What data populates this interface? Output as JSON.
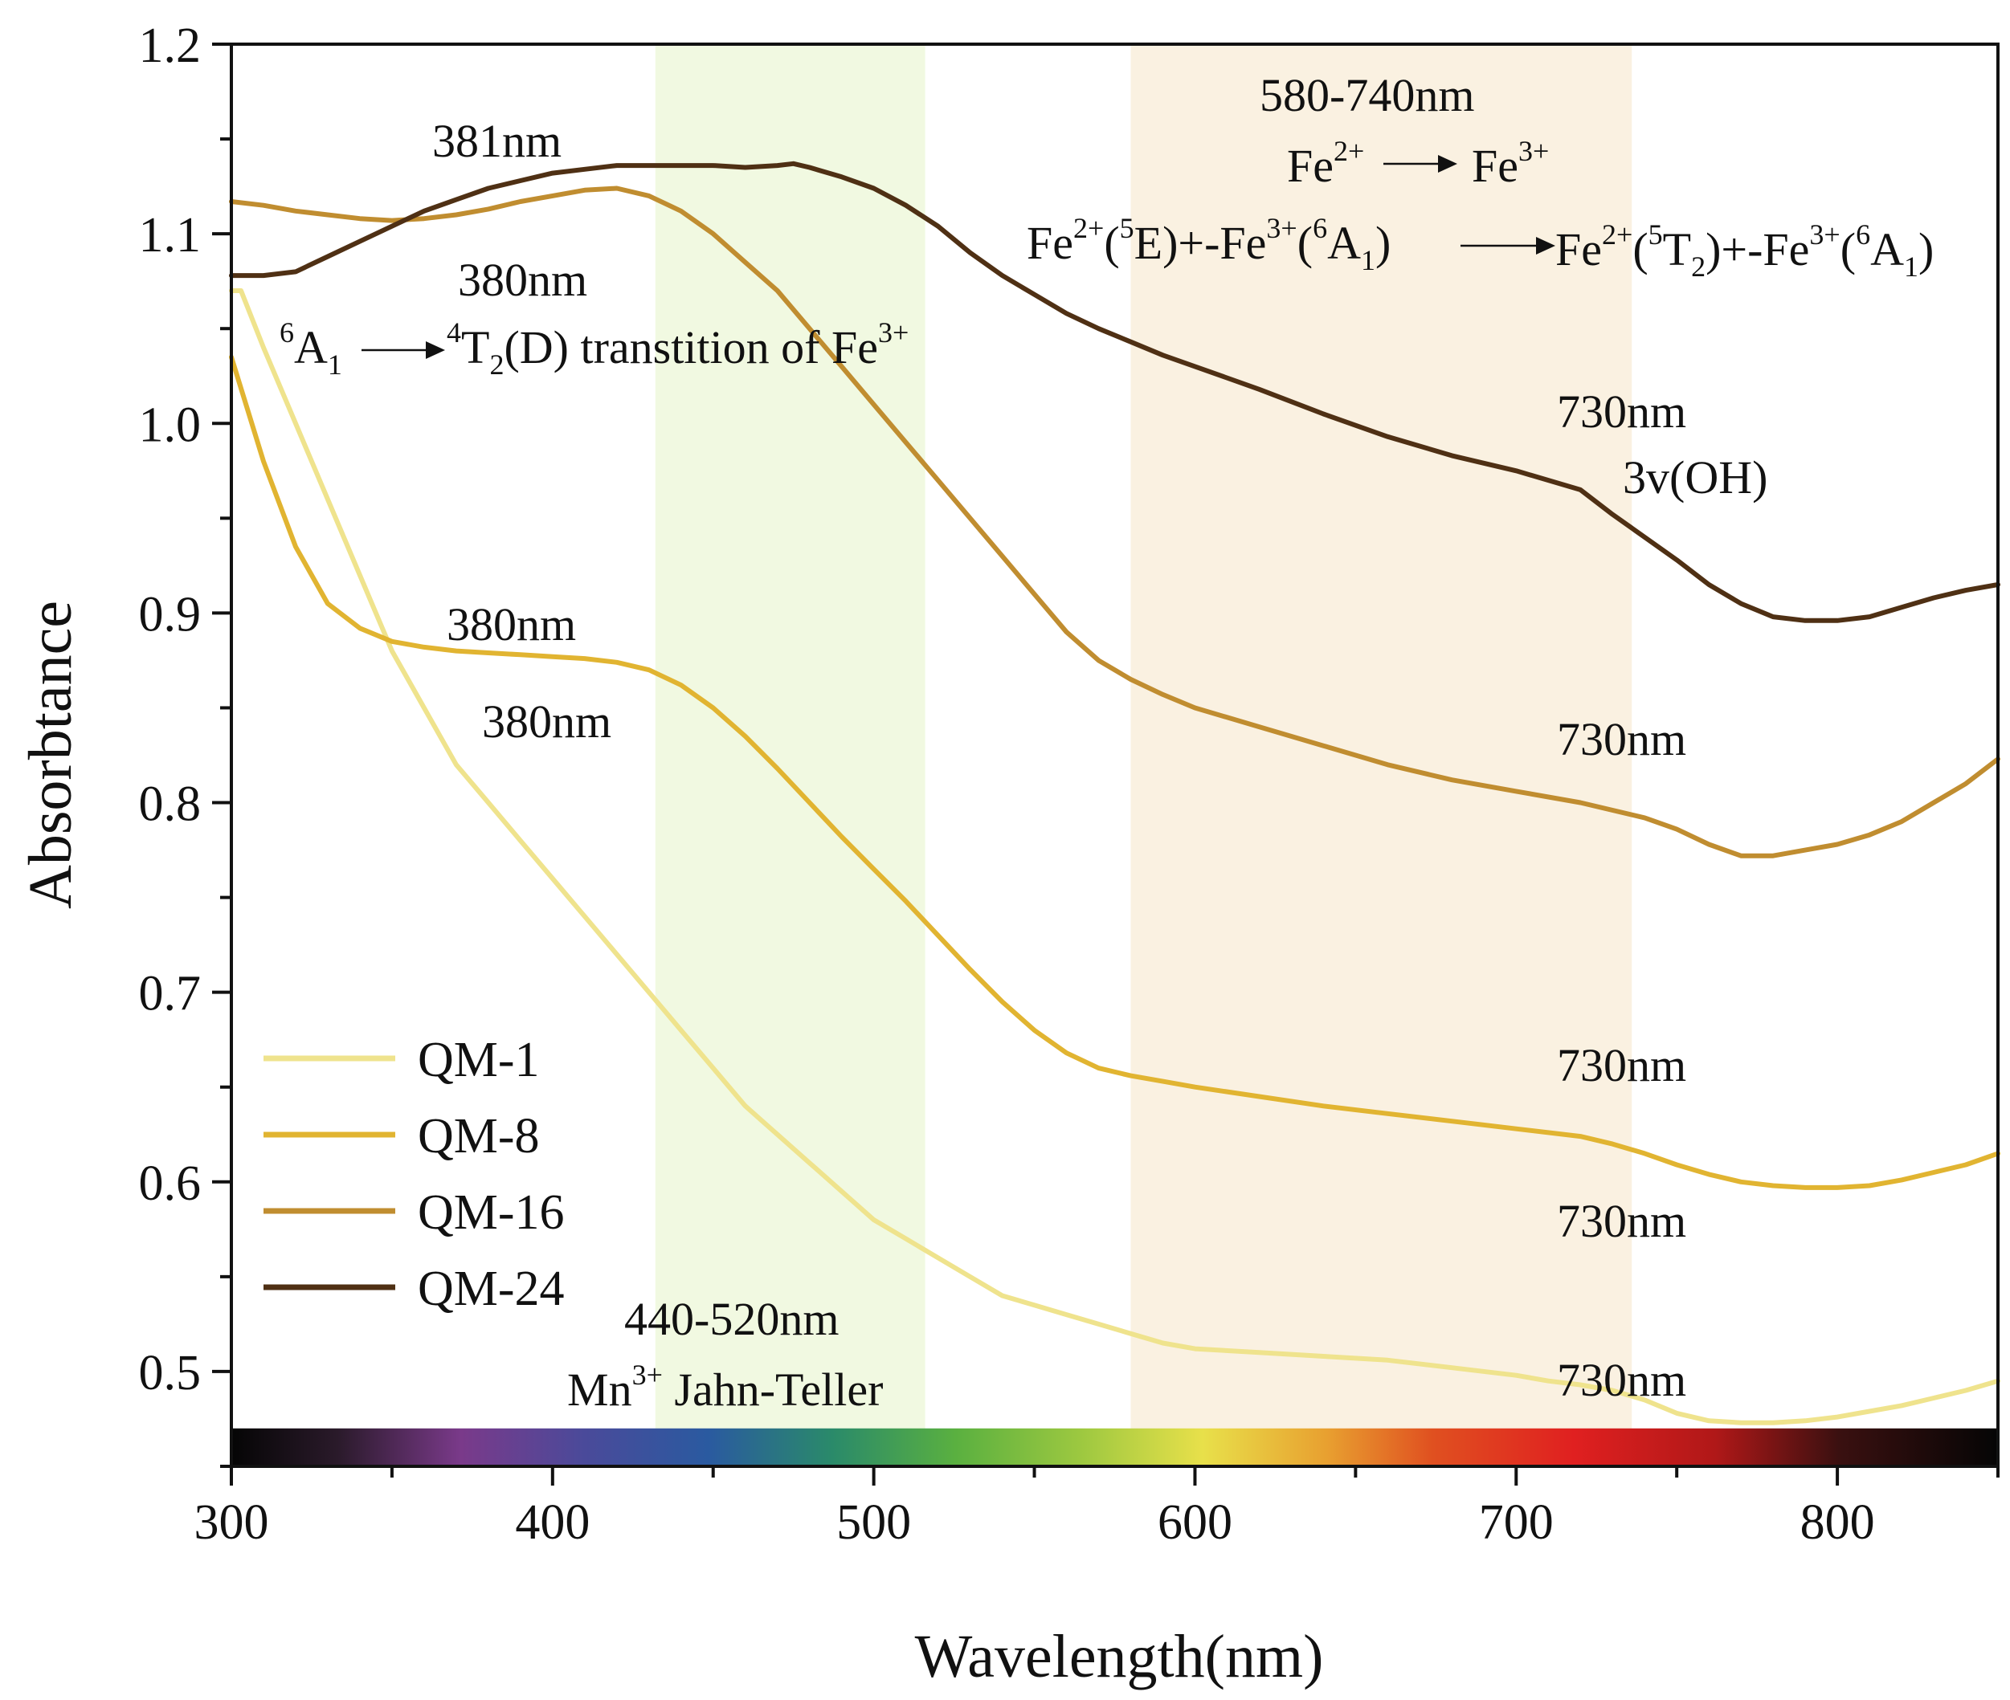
{
  "chart_data": {
    "type": "line",
    "xlabel": "Wavelength(nm)",
    "ylabel": "Absorbtance",
    "xlim": [
      300,
      850
    ],
    "ylim": [
      0.45,
      1.2
    ],
    "x_ticks": [
      "300",
      "400",
      "500",
      "600",
      "700",
      "800"
    ],
    "y_ticks": [
      "0.5",
      "0.6",
      "0.7",
      "0.8",
      "0.9",
      "1.0",
      "1.1",
      "1.2"
    ],
    "legend_position": "bottom-left",
    "grid": false,
    "bands": [
      {
        "from": 432,
        "to": 516,
        "color": "#f1f9e1"
      },
      {
        "from": 580,
        "to": 736,
        "color": "#faf1e1"
      }
    ],
    "spectrum_bar": {
      "y_from": 0.45,
      "y_to": 0.47
    },
    "series": [
      {
        "name": "QM-1",
        "color": "#efe38d",
        "x": [
          300,
          303,
          310,
          320,
          330,
          340,
          350,
          360,
          370,
          380,
          390,
          400,
          410,
          420,
          430,
          440,
          450,
          460,
          470,
          480,
          490,
          500,
          510,
          520,
          530,
          540,
          550,
          560,
          570,
          580,
          590,
          600,
          620,
          640,
          660,
          680,
          700,
          710,
          720,
          730,
          740,
          750,
          760,
          770,
          780,
          790,
          800,
          810,
          820,
          830,
          840,
          850
        ],
        "y": [
          1.07,
          1.07,
          1.04,
          1.0,
          0.96,
          0.92,
          0.88,
          0.85,
          0.82,
          0.8,
          0.78,
          0.76,
          0.74,
          0.72,
          0.7,
          0.68,
          0.66,
          0.64,
          0.625,
          0.61,
          0.595,
          0.58,
          0.57,
          0.56,
          0.55,
          0.54,
          0.535,
          0.53,
          0.525,
          0.52,
          0.515,
          0.512,
          0.51,
          0.508,
          0.506,
          0.502,
          0.498,
          0.495,
          0.493,
          0.49,
          0.485,
          0.478,
          0.474,
          0.473,
          0.473,
          0.474,
          0.476,
          0.479,
          0.482,
          0.486,
          0.49,
          0.495
        ]
      },
      {
        "name": "QM-8",
        "color": "#e1b431",
        "x": [
          300,
          310,
          320,
          330,
          340,
          350,
          360,
          370,
          380,
          390,
          400,
          410,
          420,
          430,
          440,
          450,
          460,
          470,
          480,
          490,
          500,
          510,
          520,
          530,
          540,
          550,
          560,
          570,
          580,
          590,
          600,
          620,
          640,
          660,
          680,
          700,
          720,
          730,
          740,
          750,
          760,
          770,
          780,
          790,
          800,
          810,
          820,
          830,
          840,
          850
        ],
        "y": [
          1.035,
          0.98,
          0.935,
          0.905,
          0.892,
          0.885,
          0.882,
          0.88,
          0.879,
          0.878,
          0.877,
          0.876,
          0.874,
          0.87,
          0.862,
          0.85,
          0.835,
          0.818,
          0.8,
          0.782,
          0.765,
          0.748,
          0.73,
          0.712,
          0.695,
          0.68,
          0.668,
          0.66,
          0.656,
          0.653,
          0.65,
          0.645,
          0.64,
          0.636,
          0.632,
          0.628,
          0.624,
          0.62,
          0.615,
          0.609,
          0.604,
          0.6,
          0.598,
          0.597,
          0.597,
          0.598,
          0.601,
          0.605,
          0.609,
          0.615
        ]
      },
      {
        "name": "QM-16",
        "color": "#c08d30",
        "x": [
          300,
          310,
          320,
          330,
          340,
          350,
          360,
          370,
          380,
          390,
          400,
          410,
          420,
          430,
          440,
          450,
          460,
          470,
          480,
          490,
          500,
          510,
          520,
          530,
          540,
          550,
          560,
          570,
          580,
          590,
          600,
          620,
          640,
          660,
          680,
          700,
          720,
          740,
          750,
          760,
          770,
          780,
          790,
          800,
          810,
          820,
          830,
          840,
          850
        ],
        "y": [
          1.117,
          1.115,
          1.112,
          1.11,
          1.108,
          1.107,
          1.108,
          1.11,
          1.113,
          1.117,
          1.12,
          1.123,
          1.124,
          1.12,
          1.112,
          1.1,
          1.085,
          1.07,
          1.05,
          1.03,
          1.01,
          0.99,
          0.97,
          0.95,
          0.93,
          0.91,
          0.89,
          0.875,
          0.865,
          0.857,
          0.85,
          0.84,
          0.83,
          0.82,
          0.812,
          0.806,
          0.8,
          0.792,
          0.786,
          0.778,
          0.772,
          0.772,
          0.775,
          0.778,
          0.783,
          0.79,
          0.8,
          0.81,
          0.823
        ]
      },
      {
        "name": "QM-24",
        "color": "#4f3014",
        "x": [
          300,
          310,
          320,
          330,
          340,
          350,
          360,
          370,
          380,
          390,
          400,
          410,
          420,
          430,
          440,
          450,
          460,
          470,
          475,
          480,
          490,
          500,
          510,
          520,
          530,
          540,
          550,
          560,
          570,
          580,
          590,
          600,
          620,
          640,
          660,
          680,
          700,
          720,
          730,
          740,
          750,
          760,
          770,
          780,
          790,
          800,
          810,
          820,
          830,
          840,
          850
        ],
        "y": [
          1.078,
          1.078,
          1.08,
          1.088,
          1.096,
          1.104,
          1.112,
          1.118,
          1.124,
          1.128,
          1.132,
          1.134,
          1.136,
          1.136,
          1.136,
          1.136,
          1.135,
          1.136,
          1.137,
          1.135,
          1.13,
          1.124,
          1.115,
          1.104,
          1.09,
          1.078,
          1.068,
          1.058,
          1.05,
          1.043,
          1.036,
          1.03,
          1.018,
          1.005,
          0.993,
          0.983,
          0.975,
          0.965,
          0.952,
          0.94,
          0.928,
          0.915,
          0.905,
          0.898,
          0.896,
          0.896,
          0.898,
          0.903,
          0.908,
          0.912,
          0.915
        ]
      }
    ],
    "annotations": {
      "a381": "381nm",
      "a380_top": "380nm",
      "a380_mid": "380nm",
      "a380_low": "380nm",
      "transition_6A1_pre": "A",
      "transition_6A1_sup": "6",
      "transition_6A1_sub": "1",
      "transition_4T2_sup": "4",
      "transition_4T2_T": "T",
      "transition_4T2_sub": "2",
      "transition_text": "(D) transtition of Fe",
      "transition_charge": "3+",
      "band1_range": "580-740nm",
      "fe_simple_left": "Fe",
      "fe_simple_left_sup": "2+",
      "fe_simple_right": "Fe",
      "fe_simple_right_sup": "3+",
      "ct_left_fe": "Fe",
      "ct_left_fe_sup": "2+",
      "ct_left_5": "5",
      "ct_left_E": "E)+-Fe",
      "ct_left_fe3_sup": "3+",
      "ct_left_6": "6",
      "ct_left_A": "A",
      "ct_left_sub1": "1",
      "ct_right_fe": "Fe",
      "ct_right_fe_sup": "2+",
      "ct_right_5": "5",
      "ct_right_T": "T",
      "ct_right_sub2": "2",
      "ct_right_fe3": ")+-Fe",
      "ct_right_fe3_sup": "3+",
      "ct_right_6": "6",
      "ct_right_A": "A",
      "ct_right_sub1": "1",
      "a730_1": "730nm",
      "oh": "3v(OH)",
      "a730_2": "730nm",
      "a730_3": "730nm",
      "a730_4": "730nm",
      "a730_5": "730nm",
      "band2_range": "440-520nm",
      "mn_pre": "Mn",
      "mn_sup": "3+",
      "mn_post": " Jahn-Teller"
    }
  }
}
